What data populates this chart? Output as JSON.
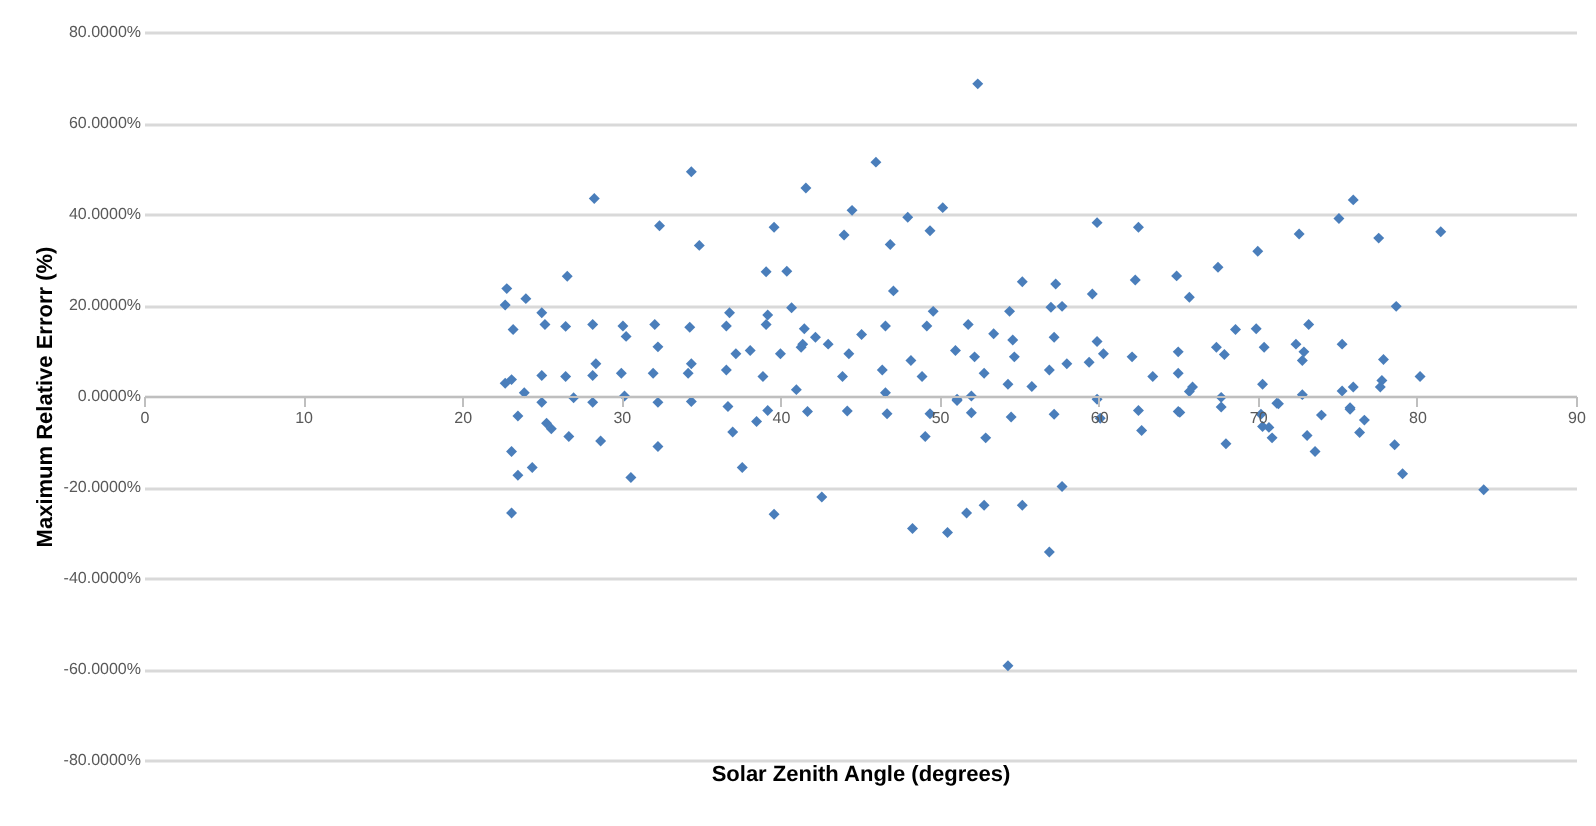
{
  "chart_data": {
    "type": "scatter",
    "xlabel": "Solar Zenith Angle (degrees)",
    "ylabel": "Maximum Relative Errorr (%)",
    "color": "#4a7ebb",
    "marker": "diamond",
    "grid": "y",
    "xlim": [
      0,
      90
    ],
    "xticks": [
      0,
      10,
      20,
      30,
      40,
      50,
      60,
      70,
      80,
      90
    ],
    "ylim": [
      -80,
      80
    ],
    "yticks": [
      {
        "value": -80,
        "label": "-80.0000%"
      },
      {
        "value": -60,
        "label": "-60.0000%"
      },
      {
        "value": -40,
        "label": "-40.0000%"
      },
      {
        "value": -20,
        "label": "-20.0000%"
      },
      {
        "value": 0,
        "label": "0.0000%"
      },
      {
        "value": 20,
        "label": "20.0000%"
      },
      {
        "value": 40,
        "label": "40.0000%"
      },
      {
        "value": 60,
        "label": "60.0000%"
      },
      {
        "value": 80,
        "label": "80.0000%"
      }
    ],
    "x": [
      28.3,
      34.4,
      32.4,
      34.9,
      26.6,
      39.1,
      40.4,
      39.6,
      41.6,
      40.7,
      22.8,
      22.7,
      24.0,
      23.2,
      25.0,
      25.2,
      26.5,
      28.2,
      30.1,
      30.3,
      32.1,
      32.3,
      34.3,
      36.8,
      36.6,
      39.2,
      39.1,
      41.5,
      22.7,
      23.1,
      23.9,
      25.0,
      26.5,
      28.2,
      28.4,
      30.0,
      30.2,
      32.0,
      34.4,
      34.2,
      36.6,
      37.2,
      38.1,
      38.9,
      40.0,
      41.3,
      41.0,
      27.0,
      28.2,
      32.3,
      25.0,
      23.5,
      23.1,
      23.5,
      24.4,
      23.1,
      25.3,
      25.6,
      26.7,
      28.7,
      32.3,
      30.6,
      37.0,
      37.6,
      38.5,
      39.2,
      39.6,
      41.7,
      34.4,
      36.7,
      52.4,
      46.0,
      44.5,
      44.0,
      48.0,
      50.2,
      49.4,
      46.9,
      47.1,
      49.6,
      54.4,
      55.2,
      57.3,
      57.0,
      57.7,
      59.9,
      62.5,
      59.6,
      62.3,
      64.9,
      65.7,
      46.6,
      49.2,
      51.8,
      53.4,
      54.6,
      57.2,
      59.9,
      65.0,
      41.4,
      42.2,
      43.0,
      44.3,
      45.1,
      46.4,
      48.2,
      48.9,
      51.0,
      52.2,
      52.8,
      54.7,
      56.9,
      58.0,
      59.4,
      60.3,
      62.1,
      63.4,
      65.0,
      43.9,
      51.1,
      52.0,
      54.3,
      55.8,
      59.9,
      46.6,
      44.2,
      46.7,
      49.4,
      49.1,
      52.0,
      52.9,
      54.5,
      57.2,
      60.1,
      62.7,
      62.5,
      65.0,
      42.6,
      48.3,
      50.5,
      51.7,
      52.8,
      55.2,
      57.7,
      56.9,
      54.3,
      51.1,
      76.0,
      75.1,
      72.6,
      77.6,
      81.5,
      70.0,
      67.5,
      78.7,
      68.6,
      69.9,
      73.2,
      70.4,
      72.4,
      75.3,
      67.4,
      67.9,
      72.9,
      72.8,
      77.9,
      80.2,
      77.8,
      77.7,
      70.3,
      65.9,
      75.3,
      76.0,
      67.7,
      71.2,
      72.8,
      75.8,
      65.1,
      67.7,
      68.0,
      70.2,
      70.3,
      70.7,
      70.9,
      71.3,
      73.1,
      73.6,
      74.0,
      75.8,
      76.7,
      76.4,
      78.6,
      79.1,
      84.2,
      65.7
    ],
    "values": [
      43.4,
      49.3,
      37.4,
      33.1,
      26.3,
      27.3,
      27.4,
      37.1,
      45.7,
      19.4,
      23.6,
      20.0,
      21.4,
      14.6,
      18.3,
      15.7,
      15.3,
      15.7,
      15.4,
      13.1,
      15.7,
      10.8,
      15.1,
      18.3,
      15.4,
      17.8,
      15.7,
      14.8,
      2.8,
      3.6,
      0.7,
      4.5,
      4.3,
      4.5,
      7.1,
      5.0,
      0.0,
      5.0,
      7.1,
      5.0,
      5.7,
      9.3,
      10.0,
      4.3,
      9.3,
      10.7,
      1.4,
      -0.4,
      -1.4,
      -1.4,
      -1.4,
      -4.4,
      -12.2,
      -17.4,
      -15.7,
      -25.7,
      -6.0,
      -7.2,
      -8.9,
      -9.9,
      -11.1,
      -17.9,
      -7.9,
      -15.7,
      -5.6,
      -3.2,
      -26.0,
      -3.4,
      -1.2,
      -2.3,
      68.6,
      51.4,
      40.8,
      35.4,
      39.3,
      41.4,
      36.3,
      33.3,
      23.1,
      18.6,
      18.6,
      25.1,
      24.6,
      19.5,
      19.7,
      38.1,
      37.1,
      22.4,
      25.5,
      26.4,
      21.7,
      15.4,
      15.4,
      15.7,
      13.7,
      12.3,
      12.9,
      12.0,
      9.7,
      11.4,
      12.9,
      11.4,
      9.3,
      13.5,
      5.7,
      7.8,
      4.3,
      10.0,
      8.6,
      5.0,
      8.6,
      5.7,
      7.1,
      7.4,
      9.3,
      8.6,
      4.3,
      5.0,
      4.3,
      -0.7,
      0.0,
      2.6,
      2.1,
      -0.7,
      0.7,
      -3.3,
      -3.9,
      -3.9,
      -8.9,
      -3.7,
      -9.2,
      -4.6,
      -4.0,
      -4.9,
      -7.6,
      -3.2,
      -3.4,
      -22.2,
      -29.1,
      -30.0,
      -25.7,
      -24.0,
      -24.0,
      -19.9,
      -34.3,
      -59.3,
      -1.0,
      43.1,
      39.0,
      35.6,
      34.7,
      36.1,
      31.8,
      28.3,
      19.7,
      14.6,
      14.8,
      15.7,
      10.7,
      11.4,
      11.4,
      10.7,
      9.1,
      9.7,
      7.8,
      8.0,
      4.3,
      3.4,
      2.0,
      2.6,
      2.0,
      1.1,
      2.0,
      -0.3,
      -1.6,
      0.3,
      -2.6,
      -3.6,
      -2.4,
      -10.5,
      -4.0,
      -6.7,
      -6.9,
      -9.2,
      -1.7,
      -8.7,
      -12.2,
      -4.2,
      -2.9,
      -5.3,
      -8.0,
      -10.7,
      -17.1,
      -20.6,
      1.0
    ]
  }
}
